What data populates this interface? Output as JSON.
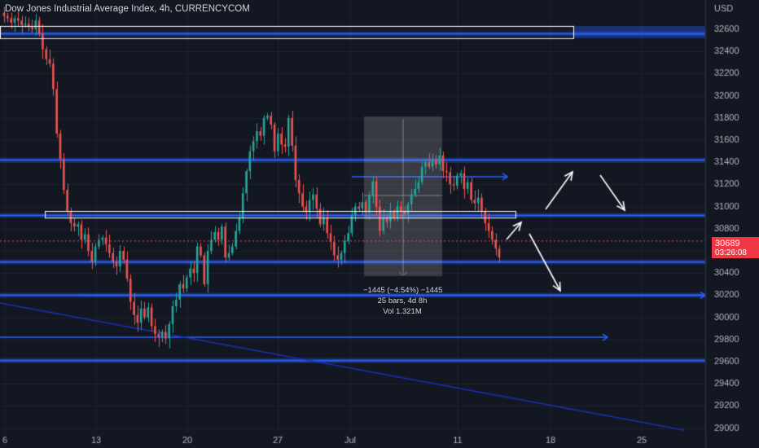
{
  "header": {
    "title": "Dow Jones Industrial Average Index, 4h, CURRENCYCOM"
  },
  "measure": {
    "change": "−1445 (−4.54%) −1445",
    "bars": "25 bars, 4d 8h",
    "volume": "Vol 1.321M"
  },
  "price_badge": {
    "price": "30689",
    "countdown": "03:26:08"
  },
  "colors": {
    "background": "#131722",
    "up": "#26a69a",
    "down": "#ef5350",
    "level": "#2962ff",
    "badge": "#f23645",
    "text": "#b2b5be"
  },
  "chart_data": {
    "type": "candlestick",
    "title": "Dow Jones Industrial Average Index, 4h, CURRENCYCOM",
    "x_tick_labels": [
      "6",
      "13",
      "20",
      "27",
      "Jul",
      "11",
      "18",
      "25"
    ],
    "y_axis_label": "USD",
    "y_tick_labels": [
      32600,
      32400,
      32200,
      32000,
      31800,
      31600,
      31400,
      31200,
      31000,
      30800,
      30600,
      30400,
      30200,
      30000,
      29800,
      29600,
      29400,
      29200,
      29000
    ],
    "ylim": [
      28990,
      32800
    ],
    "xlim_bars": [
      0,
      200
    ],
    "current_price": 30689,
    "close_series": [
      32720,
      32700,
      32660,
      32700,
      32680,
      32640,
      32650,
      32620,
      32600,
      32680,
      32560,
      32420,
      32330,
      32290,
      32060,
      31660,
      31430,
      31150,
      30960,
      30850,
      30820,
      30840,
      30700,
      30750,
      30600,
      30500,
      30640,
      30700,
      30720,
      30660,
      30580,
      30500,
      30460,
      30600,
      30520,
      30350,
      30140,
      30020,
      29950,
      30080,
      30000,
      30090,
      29920,
      29850,
      29820,
      29870,
      29810,
      29940,
      30100,
      30160,
      30300,
      30260,
      30360,
      30440,
      30400,
      30640,
      30560,
      30300,
      30600,
      30700,
      30770,
      30700,
      30820,
      30540,
      30580,
      30640,
      30780,
      30900,
      31120,
      31320,
      31500,
      31590,
      31680,
      31640,
      31800,
      31820,
      31740,
      31500,
      31660,
      31560,
      31540,
      31800,
      31550,
      31240,
      31120,
      31000,
      30950,
      31060,
      31110,
      30980,
      30840,
      30900,
      30760,
      30680,
      30560,
      30520,
      30580,
      30690,
      30760,
      30920,
      31000,
      30980,
      31040,
      30950,
      31100,
      31230,
      31000,
      30780,
      30900,
      30860,
      30950,
      30900,
      31000,
      30960,
      30930,
      31020,
      31110,
      31160,
      31220,
      31360,
      31400,
      31360,
      31420,
      31380,
      31460,
      31320,
      31310,
      31200,
      31190,
      31280,
      31300,
      31160,
      31220,
      31060,
      31030,
      31080,
      30960,
      30850,
      30780,
      30700,
      30620,
      30540
    ],
    "horizontal_levels": [
      32560,
      31420,
      30920,
      30500,
      30200,
      29610
    ],
    "zones": [
      {
        "top": 32630,
        "bottom": 32520,
        "label": "resistance box"
      },
      {
        "top": 30960,
        "bottom": 30900,
        "label": "support/resistance box"
      }
    ],
    "trend_line": {
      "from_price": 30020,
      "to_price": 28990
    }
  }
}
